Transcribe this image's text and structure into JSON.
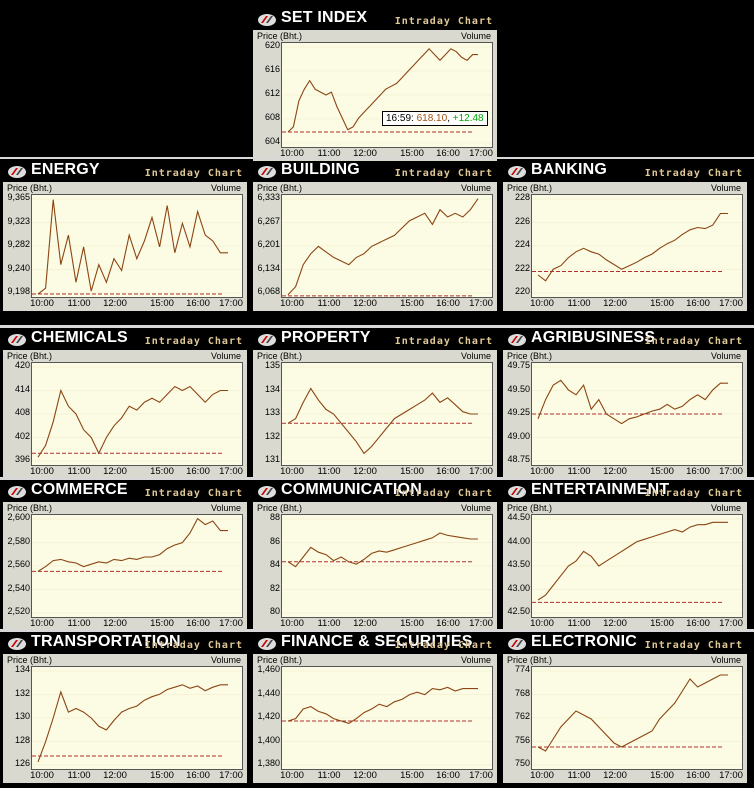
{
  "chart_data": [
    {
      "title": "SET INDEX",
      "subtitle": "Intraday Chart",
      "ylabel": "Price (Bht.)",
      "y2label": "Volume",
      "type": "line",
      "yticks": [
        "620",
        "616",
        "612",
        "608",
        "604"
      ],
      "ylim": [
        603,
        621
      ],
      "prevclose": 605.6,
      "xticks": [
        "10:00",
        "11:00",
        "12:00",
        "15:00",
        "16:00",
        "17:00"
      ],
      "values": [
        605.6,
        606.5,
        611,
        613,
        614.5,
        613,
        612.5,
        612,
        612.5,
        610,
        608,
        606,
        606.5,
        608,
        609,
        610,
        611,
        612,
        613,
        613.5,
        614,
        615,
        616,
        617,
        618,
        619,
        620,
        619,
        618,
        619,
        620,
        619.5,
        618.5,
        618,
        619,
        619
      ],
      "tooltip": {
        "time": "16:59",
        "price": "618.10",
        "change": "+12.48"
      }
    },
    {
      "title": "ENERGY",
      "subtitle": "Intraday Chart",
      "ylabel": "Price (Bht.)",
      "y2label": "Volume",
      "type": "line",
      "yticks": [
        "9,365",
        "9,323",
        "9,282",
        "9,240",
        "9,198"
      ],
      "ylim": [
        9195,
        9368
      ],
      "prevclose": 9200,
      "xticks": [
        "10:00",
        "11:00",
        "12:00",
        "15:00",
        "16:00",
        "17:00"
      ],
      "values": [
        9200,
        9210,
        9360,
        9250,
        9300,
        9220,
        9280,
        9205,
        9250,
        9220,
        9260,
        9240,
        9300,
        9260,
        9290,
        9330,
        9280,
        9350,
        9270,
        9320,
        9280,
        9340,
        9300,
        9290,
        9270,
        9270
      ]
    },
    {
      "title": "BUILDING",
      "subtitle": "Intraday Chart",
      "ylabel": "Price (Bht.)",
      "y2label": "Volume",
      "type": "line",
      "yticks": [
        "6,333",
        "6,267",
        "6,201",
        "6,134",
        "6,068"
      ],
      "ylim": [
        6062,
        6340
      ],
      "prevclose": 6065,
      "xticks": [
        "10:00",
        "11:00",
        "12:00",
        "15:00",
        "16:00",
        "17:00"
      ],
      "values": [
        6068,
        6090,
        6150,
        6180,
        6200,
        6185,
        6170,
        6160,
        6150,
        6170,
        6180,
        6200,
        6210,
        6220,
        6230,
        6250,
        6270,
        6280,
        6290,
        6260,
        6300,
        6280,
        6290,
        6280,
        6300,
        6330
      ]
    },
    {
      "title": "BANKING",
      "subtitle": "Intraday Chart",
      "ylabel": "Price (Bht.)",
      "y2label": "Volume",
      "type": "line",
      "yticks": [
        "228",
        "226",
        "224",
        "222",
        "220"
      ],
      "ylim": [
        219.6,
        228.4
      ],
      "prevclose": 221.8,
      "xticks": [
        "10:00",
        "11:00",
        "12:00",
        "15:00",
        "16:00",
        "17:00"
      ],
      "values": [
        221.5,
        221,
        222,
        222.3,
        223,
        223.5,
        223.8,
        223.5,
        223.3,
        222.8,
        222.4,
        222,
        222.3,
        222.6,
        223,
        223.3,
        223.8,
        224.2,
        224.5,
        225,
        225.4,
        225.6,
        225.5,
        225.8,
        226.8,
        226.8
      ]
    },
    {
      "title": "CHEMICALS",
      "subtitle": "Intraday Chart",
      "ylabel": "Price (Bht.)",
      "y2label": "Volume",
      "type": "line",
      "yticks": [
        "420",
        "414",
        "408",
        "402",
        "396"
      ],
      "ylim": [
        395,
        421
      ],
      "prevclose": 398,
      "xticks": [
        "10:00",
        "11:00",
        "12:00",
        "15:00",
        "16:00",
        "17:00"
      ],
      "values": [
        397,
        400,
        406,
        414,
        410,
        408,
        404,
        402,
        398,
        402,
        405,
        407,
        410,
        409,
        411,
        412,
        411,
        413,
        415,
        414,
        415,
        413,
        411,
        413,
        414,
        414
      ]
    },
    {
      "title": "PROPERTY",
      "subtitle": "Intraday Chart",
      "ylabel": "Price (Bht.)",
      "y2label": "Volume",
      "type": "line",
      "yticks": [
        "135",
        "134",
        "133",
        "132",
        "131"
      ],
      "ylim": [
        130.8,
        135.2
      ],
      "prevclose": 132.6,
      "xticks": [
        "10:00",
        "11:00",
        "12:00",
        "15:00",
        "16:00",
        "17:00"
      ],
      "values": [
        132.6,
        132.8,
        133.5,
        134.1,
        133.6,
        133.2,
        133,
        132.6,
        132.2,
        131.8,
        131.3,
        131.6,
        132,
        132.4,
        132.8,
        133,
        133.2,
        133.4,
        133.6,
        133.9,
        133.5,
        133.7,
        133.4,
        133.1,
        133.0,
        133.0
      ]
    },
    {
      "title": "AGRIBUSINESS",
      "subtitle": "Intraday Chart",
      "ylabel": "Price (Bht.)",
      "y2label": "Volume",
      "type": "line",
      "yticks": [
        "49.75",
        "49.50",
        "49.25",
        "49.00",
        "48.75"
      ],
      "ylim": [
        48.72,
        49.78
      ],
      "prevclose": 49.25,
      "xticks": [
        "10:00",
        "11:00",
        "12:00",
        "15:00",
        "16:00",
        "17:00"
      ],
      "values": [
        49.2,
        49.4,
        49.55,
        49.6,
        49.5,
        49.45,
        49.55,
        49.3,
        49.4,
        49.25,
        49.2,
        49.15,
        49.2,
        49.22,
        49.25,
        49.28,
        49.3,
        49.35,
        49.3,
        49.33,
        49.4,
        49.45,
        49.4,
        49.5,
        49.57,
        49.57
      ]
    },
    {
      "title": "COMMERCE",
      "subtitle": "Intraday Chart",
      "ylabel": "Price (Bht.)",
      "y2label": "Volume",
      "type": "line",
      "yticks": [
        "2,600",
        "2,580",
        "2,560",
        "2,540",
        "2,520"
      ],
      "ylim": [
        2518,
        2603
      ],
      "prevclose": 2556,
      "xticks": [
        "10:00",
        "11:00",
        "12:00",
        "15:00",
        "16:00",
        "17:00"
      ],
      "values": [
        2556,
        2560,
        2565,
        2566,
        2564,
        2563,
        2560,
        2562,
        2564,
        2563,
        2566,
        2565,
        2567,
        2566,
        2568,
        2568,
        2570,
        2575,
        2578,
        2580,
        2588,
        2600,
        2595,
        2598,
        2590,
        2590
      ]
    },
    {
      "title": "COMMUNICATION",
      "subtitle": "Intraday Chart",
      "ylabel": "Price (Bht.)",
      "y2label": "Volume",
      "type": "line",
      "yticks": [
        "88",
        "86",
        "84",
        "82",
        "80"
      ],
      "ylim": [
        79.8,
        88.3
      ],
      "prevclose": 84.4,
      "xticks": [
        "10:00",
        "11:00",
        "12:00",
        "15:00",
        "16:00",
        "17:00"
      ],
      "values": [
        84.4,
        84,
        84.8,
        85.6,
        85.2,
        85,
        84.5,
        84.8,
        84.4,
        84.2,
        84.6,
        85.1,
        85.3,
        85.2,
        85.4,
        85.6,
        85.8,
        86,
        86.2,
        86.4,
        86.8,
        86.6,
        86.5,
        86.4,
        86.3,
        86.3
      ]
    },
    {
      "title": "ENTERTAINMENT",
      "subtitle": "Intraday Chart",
      "ylabel": "Price (Bht.)",
      "y2label": "Volume",
      "type": "line",
      "yticks": [
        "44.50",
        "44.00",
        "43.50",
        "43.00",
        "42.50"
      ],
      "ylim": [
        42.45,
        44.55
      ],
      "prevclose": 42.75,
      "xticks": [
        "10:00",
        "11:00",
        "12:00",
        "15:00",
        "16:00",
        "17:00"
      ],
      "values": [
        42.8,
        42.9,
        43.1,
        43.3,
        43.5,
        43.6,
        43.8,
        43.7,
        43.5,
        43.6,
        43.7,
        43.8,
        43.9,
        44,
        44.05,
        44.1,
        44.15,
        44.2,
        44.25,
        44.2,
        44.3,
        44.35,
        44.35,
        44.4,
        44.4,
        44.4
      ]
    },
    {
      "title": "TRANSPORTATION",
      "subtitle": "Intraday Chart",
      "ylabel": "Price (Bht.)",
      "y2label": "Volume",
      "type": "line",
      "yticks": [
        "134",
        "132",
        "130",
        "128",
        "126"
      ],
      "ylim": [
        125.7,
        134.3
      ],
      "prevclose": 126.8,
      "xticks": [
        "10:00",
        "11:00",
        "12:00",
        "15:00",
        "16:00",
        "17:00"
      ],
      "values": [
        126.3,
        128,
        130,
        132.2,
        130.5,
        130.8,
        130.5,
        130,
        129.3,
        129,
        129.8,
        130.5,
        130.8,
        131,
        131.5,
        131.8,
        132,
        132.4,
        132.6,
        132.8,
        132.5,
        132.7,
        132.3,
        132.6,
        132.8,
        132.8
      ]
    },
    {
      "title": "FINANCE & SECURITIES",
      "subtitle": "Intraday Chart",
      "ylabel": "Price (Bht.)",
      "y2label": "Volume",
      "type": "line",
      "yticks": [
        "1,460",
        "1,440",
        "1,420",
        "1,400",
        "1,380"
      ],
      "ylim": [
        1378,
        1463
      ],
      "prevclose": 1418,
      "xticks": [
        "10:00",
        "11:00",
        "12:00",
        "15:00",
        "16:00",
        "17:00"
      ],
      "values": [
        1418,
        1420,
        1428,
        1430,
        1426,
        1424,
        1420,
        1418,
        1416,
        1420,
        1425,
        1428,
        1432,
        1430,
        1434,
        1436,
        1440,
        1442,
        1440,
        1445,
        1444,
        1446,
        1443,
        1445,
        1445,
        1445
      ]
    },
    {
      "title": "ELECTRONIC",
      "subtitle": "Intraday Chart",
      "ylabel": "Price (Bht.)",
      "y2label": "Volume",
      "type": "line",
      "yticks": [
        "774",
        "768",
        "762",
        "756",
        "750"
      ],
      "ylim": [
        749.5,
        775
      ],
      "prevclose": 755,
      "xticks": [
        "10:00",
        "11:00",
        "12:00",
        "15:00",
        "16:00",
        "17:00"
      ],
      "values": [
        755,
        754,
        757,
        760,
        762,
        764,
        763,
        762,
        760,
        758,
        756,
        755,
        756,
        757,
        758,
        759,
        762,
        764,
        766,
        769,
        772,
        770,
        771,
        772,
        773,
        773
      ]
    }
  ]
}
